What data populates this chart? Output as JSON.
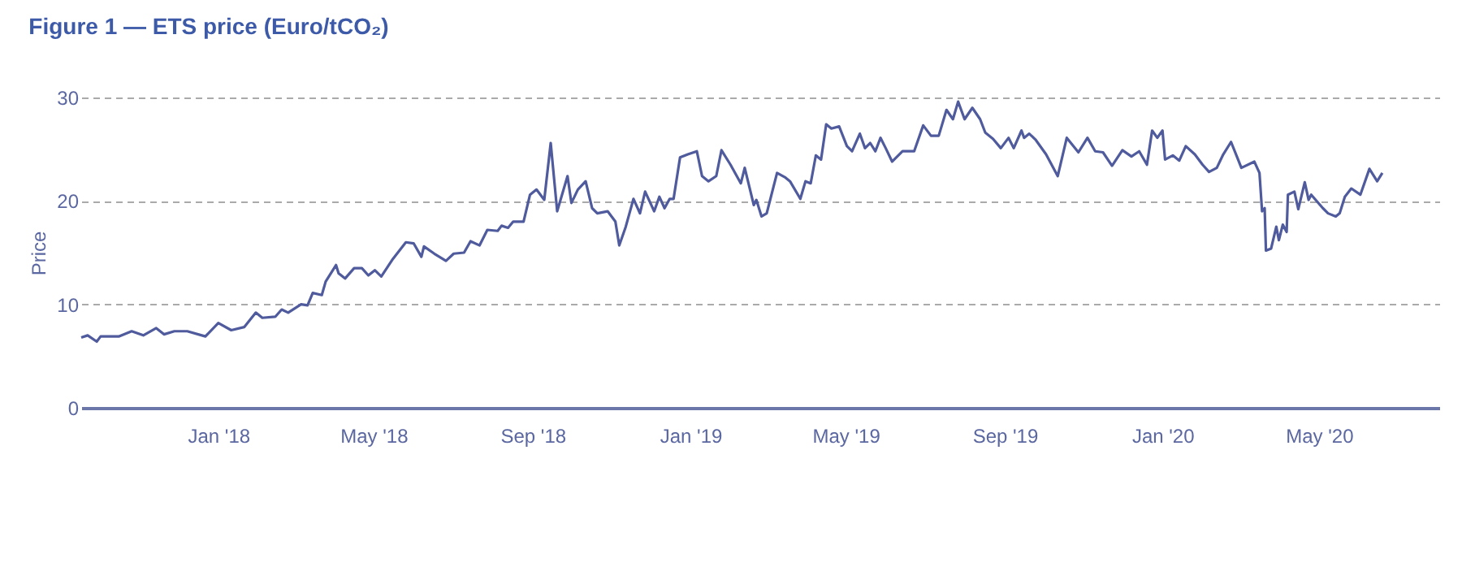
{
  "chart_data": {
    "type": "line",
    "title": "Figure 1 — ETS price (Euro/tCO₂)",
    "ylabel": "Price",
    "x": [
      "2017-09-17",
      "2017-09-22",
      "2017-09-29",
      "2017-10-02",
      "2017-10-16",
      "2017-10-26",
      "2017-11-04",
      "2017-11-14",
      "2017-11-20",
      "2017-11-28",
      "2017-12-08",
      "2017-12-22",
      "2018-01-01",
      "2018-01-11",
      "2018-01-21",
      "2018-01-30",
      "2018-02-04",
      "2018-02-14",
      "2018-02-19",
      "2018-02-24",
      "2018-03-06",
      "2018-03-11",
      "2018-03-15",
      "2018-03-22",
      "2018-03-25",
      "2018-04-02",
      "2018-04-04",
      "2018-04-09",
      "2018-04-16",
      "2018-04-22",
      "2018-04-27",
      "2018-05-02",
      "2018-05-07",
      "2018-05-16",
      "2018-05-26",
      "2018-06-01",
      "2018-06-07",
      "2018-06-09",
      "2018-06-17",
      "2018-06-26",
      "2018-07-02",
      "2018-07-10",
      "2018-07-15",
      "2018-07-22",
      "2018-07-28",
      "2018-08-05",
      "2018-08-08",
      "2018-08-13",
      "2018-08-17",
      "2018-08-19",
      "2018-08-25",
      "2018-08-30",
      "2018-09-04",
      "2018-09-10",
      "2018-09-15",
      "2018-09-20",
      "2018-09-28",
      "2018-10-01",
      "2018-10-06",
      "2018-10-12",
      "2018-10-17",
      "2018-10-21",
      "2018-10-29",
      "2018-11-04",
      "2018-11-07",
      "2018-11-12",
      "2018-11-18",
      "2018-11-23",
      "2018-11-27",
      "2018-12-04",
      "2018-12-08",
      "2018-12-12",
      "2018-12-16",
      "2018-12-19",
      "2018-12-24",
      "2018-12-30",
      "2019-01-06",
      "2019-01-10",
      "2019-01-15",
      "2019-01-21",
      "2019-01-25",
      "2019-02-01",
      "2019-02-09",
      "2019-02-12",
      "2019-02-19",
      "2019-02-21",
      "2019-02-25",
      "2019-03-01",
      "2019-03-09",
      "2019-03-15",
      "2019-03-19",
      "2019-03-27",
      "2019-03-31",
      "2019-04-04",
      "2019-04-08",
      "2019-04-12",
      "2019-04-16",
      "2019-04-20",
      "2019-04-26",
      "2019-05-02",
      "2019-05-06",
      "2019-05-12",
      "2019-05-16",
      "2019-05-20",
      "2019-05-24",
      "2019-05-28",
      "2019-06-01",
      "2019-06-06",
      "2019-06-14",
      "2019-06-23",
      "2019-06-30",
      "2019-07-06",
      "2019-07-12",
      "2019-07-18",
      "2019-07-23",
      "2019-07-27",
      "2019-08-01",
      "2019-08-07",
      "2019-08-13",
      "2019-08-17",
      "2019-08-23",
      "2019-08-29",
      "2019-09-04",
      "2019-09-08",
      "2019-09-14",
      "2019-09-16",
      "2019-09-20",
      "2019-09-25",
      "2019-10-03",
      "2019-10-12",
      "2019-10-19",
      "2019-10-28",
      "2019-11-04",
      "2019-11-10",
      "2019-11-16",
      "2019-11-23",
      "2019-12-01",
      "2019-12-08",
      "2019-12-14",
      "2019-12-20",
      "2019-12-24",
      "2019-12-28",
      "2020-01-01",
      "2020-01-03",
      "2020-01-09",
      "2020-01-14",
      "2020-01-19",
      "2020-01-26",
      "2020-02-01",
      "2020-02-06",
      "2020-02-12",
      "2020-02-17",
      "2020-02-23",
      "2020-03-02",
      "2020-03-12",
      "2020-03-16",
      "2020-03-18",
      "2020-03-20",
      "2020-03-21",
      "2020-03-25",
      "2020-03-29",
      "2020-03-31",
      "2020-04-03",
      "2020-04-06",
      "2020-04-07",
      "2020-04-12",
      "2020-04-15",
      "2020-04-20",
      "2020-04-23",
      "2020-04-25",
      "2020-05-04",
      "2020-05-08",
      "2020-05-14",
      "2020-05-17",
      "2020-05-21",
      "2020-05-26",
      "2020-06-02",
      "2020-06-09",
      "2020-06-15",
      "2020-06-19"
    ],
    "series": [
      {
        "color": "#4f5b9c",
        "values": [
          6.8,
          7.0,
          6.4,
          6.9,
          6.9,
          7.4,
          7.0,
          7.7,
          7.1,
          7.4,
          7.4,
          6.9,
          8.2,
          7.5,
          7.8,
          9.2,
          8.7,
          8.8,
          9.5,
          9.2,
          10.0,
          9.9,
          11.1,
          10.9,
          12.2,
          13.8,
          13.0,
          12.5,
          13.5,
          13.5,
          12.8,
          13.3,
          12.7,
          14.4,
          16.0,
          15.9,
          14.6,
          15.6,
          14.9,
          14.2,
          14.9,
          15.0,
          16.1,
          15.7,
          17.2,
          17.1,
          17.6,
          17.4,
          18.0,
          18.0,
          18.0,
          20.6,
          21.1,
          20.1,
          25.6,
          19.0,
          22.4,
          19.8,
          21.1,
          21.9,
          19.3,
          18.8,
          19.0,
          18.0,
          15.7,
          17.5,
          20.2,
          18.8,
          20.9,
          19.0,
          20.4,
          19.3,
          20.2,
          20.2,
          24.2,
          24.5,
          24.8,
          22.4,
          21.9,
          22.4,
          24.9,
          23.5,
          21.7,
          23.2,
          19.6,
          20.1,
          18.5,
          18.8,
          22.7,
          22.3,
          21.9,
          20.2,
          21.9,
          21.7,
          24.4,
          24.0,
          27.4,
          27.0,
          27.2,
          25.3,
          24.8,
          26.5,
          25.1,
          25.6,
          24.8,
          26.1,
          25.1,
          23.8,
          24.8,
          24.8,
          27.3,
          26.3,
          26.3,
          28.8,
          27.9,
          29.6,
          27.9,
          29.0,
          27.9,
          26.6,
          26.0,
          25.1,
          26.1,
          25.1,
          26.8,
          26.1,
          26.5,
          25.9,
          24.5,
          22.4,
          26.1,
          24.7,
          26.1,
          24.8,
          24.7,
          23.4,
          24.9,
          24.3,
          24.8,
          23.5,
          26.8,
          26.1,
          26.8,
          24.0,
          24.4,
          23.9,
          25.3,
          24.5,
          23.5,
          22.8,
          23.2,
          24.5,
          25.7,
          23.2,
          23.8,
          22.7,
          19.0,
          19.3,
          15.2,
          15.4,
          17.5,
          16.2,
          17.7,
          17.0,
          20.6,
          20.9,
          19.2,
          21.8,
          20.1,
          20.6,
          19.3,
          18.8,
          18.5,
          18.8,
          20.4,
          21.2,
          20.6,
          23.1,
          21.9,
          22.7
        ]
      }
    ],
    "xlim": [
      "2017-09-17",
      "2020-08-02"
    ],
    "xticks": [
      {
        "value": "2018-01-01",
        "label": "Jan '18"
      },
      {
        "value": "2018-05-01",
        "label": "May '18"
      },
      {
        "value": "2018-09-01",
        "label": "Sep '18"
      },
      {
        "value": "2019-01-01",
        "label": "Jan '19"
      },
      {
        "value": "2019-05-01",
        "label": "May '19"
      },
      {
        "value": "2019-09-01",
        "label": "Sep '19"
      },
      {
        "value": "2020-01-01",
        "label": "Jan '20"
      },
      {
        "value": "2020-05-01",
        "label": "May '20"
      }
    ],
    "ylim": [
      0,
      30
    ],
    "yticks": [
      0,
      10,
      20,
      30
    ],
    "grid": "y"
  }
}
